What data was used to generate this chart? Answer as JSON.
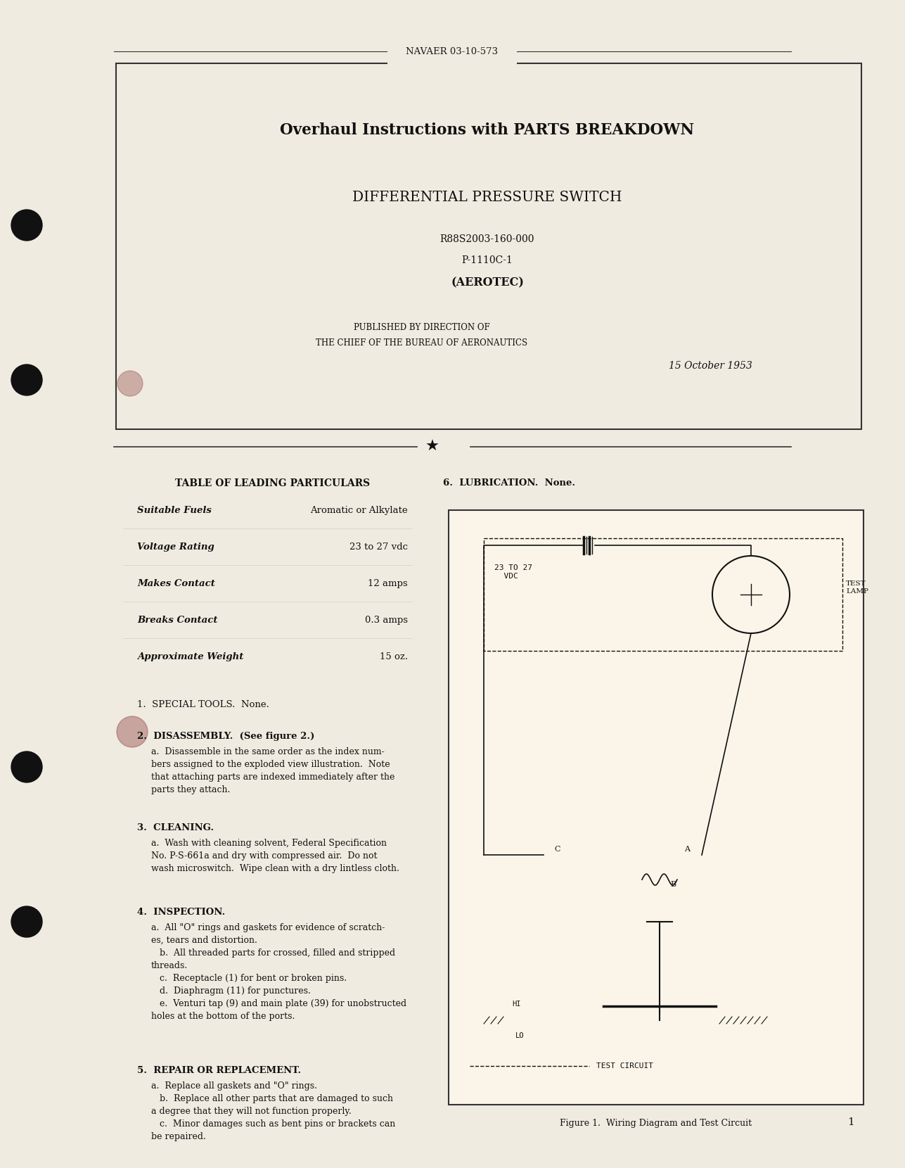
{
  "bg_color": "#f5f0e0",
  "page_bg": "#f0ebe0",
  "text_color": "#1a1a1a",
  "header_text": "NAVAER 03-10-573",
  "title1": "Overhaul Instructions with PARTS BREAKDOWN",
  "title2": "DIFFERENTIAL PRESSURE SWITCH",
  "part1": "R88S2003-160-000",
  "part2": "P-1110C-1",
  "part3": "(AEROTEC)",
  "pub_line1": "PUBLISHED BY DIRECTION OF",
  "pub_line2": "THE CHIEF OF THE BUREAU OF AERONAUTICS",
  "date_text": "15 October 1953",
  "table_title": "TABLE OF LEADING PARTICULARS",
  "table_rows": [
    [
      "Suitable Fuels",
      "Aromatic or Alkylate"
    ],
    [
      "Voltage Rating",
      "23 to 27 vdc"
    ],
    [
      "Makes Contact",
      "12 amps"
    ],
    [
      "Breaks Contact",
      "0.3 amps"
    ],
    [
      "Approximate Weight",
      "15 oz."
    ]
  ],
  "section1": "1.  SPECIAL TOOLS.  None.",
  "section2_title": "2.  DISASSEMBLY.  (See figure 2.)",
  "section2_text": "a.  Disassemble in the same order as the index numbers assigned to the exploded view illustration.  Note that attaching parts are indexed immediately after the parts they attach.",
  "section3_title": "3.  CLEANING.",
  "section3_text": "a.  Wash with cleaning solvent, Federal Specification No. P-S-661a and dry with compressed air.  Do not wash microswitch.  Wipe clean with a dry lintless cloth.",
  "section4_title": "4.  INSPECTION.",
  "section4_text": "a.  All \"O\" rings and gaskets for evidence of scratches, tears and distortion.\n   b.  All threaded parts for crossed, filled and stripped threads.\n   c.  Receptacle (1) for bent or broken pins.\n   d.  Diaphragm (11) for punctures.\n   e.  Venturi tap (9) and main plate (39) for unobstructed holes at the bottom of the ports.",
  "section5_title": "5.  REPAIR OR REPLACEMENT.",
  "section5_text": "a.  Replace all gaskets and \"O\" rings.\n   b.  Replace all other parts that are damaged to such a degree that they will not function properly.\n   c.  Minor damages such as bent pins or brackets can be repaired.",
  "section6": "6.  LUBRICATION.  None.",
  "figure_caption": "Figure 1.  Wiring Diagram and Test Circuit",
  "page_number": "1"
}
